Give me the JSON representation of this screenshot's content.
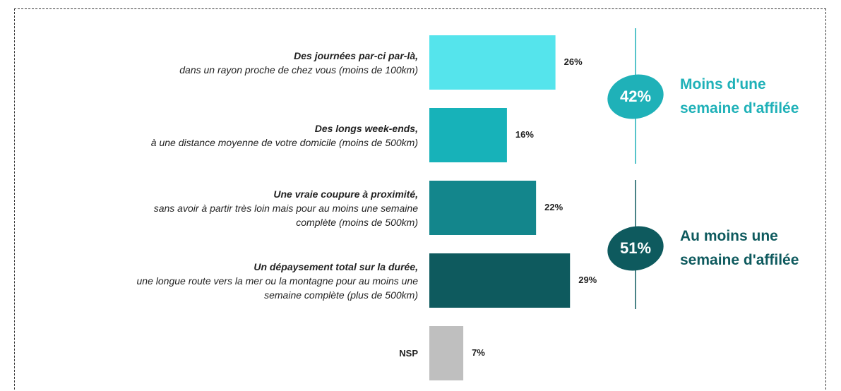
{
  "chart_data": {
    "type": "hbar",
    "categories": [
      "Des journées par-ci par-là,\ndans un rayon proche de chez vous (moins de 100km)",
      "Des longs week-ends,\nà une distance moyenne de votre domicile (moins de 500km)",
      "Une vraie coupure à proximité,\nsans avoir à partir très loin mais pour au moins une semaine\ncomplète (moins de 500km)",
      "Un dépaysement total sur la durée,\nune longue route vers la mer ou la montagne pour au moins une\nsemaine complète (plus de 500km)",
      "NSP"
    ],
    "values": [
      26,
      16,
      22,
      29,
      7
    ],
    "value_labels": [
      "26%",
      "16%",
      "22%",
      "29%",
      "7%"
    ],
    "colors": [
      "#55e4ec",
      "#17b2b9",
      "#13868c",
      "#0e5a5e",
      "#bfbfbf"
    ],
    "groups": [
      {
        "value": 42,
        "value_label": "42%",
        "label": "Moins d'une\nsemaine d'affilée",
        "color": "#1fb1b8"
      },
      {
        "value": 51,
        "value_label": "51%",
        "label": "Au moins une\nsemaine d'affilée",
        "color": "#0e5a5e"
      }
    ]
  }
}
